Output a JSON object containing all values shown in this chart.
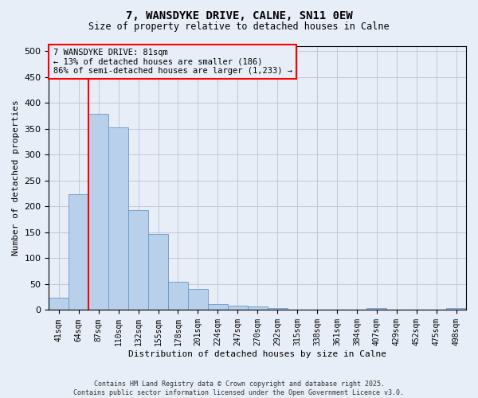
{
  "title_line1": "7, WANSDYKE DRIVE, CALNE, SN11 0EW",
  "title_line2": "Size of property relative to detached houses in Calne",
  "xlabel": "Distribution of detached houses by size in Calne",
  "ylabel": "Number of detached properties",
  "categories": [
    "41sqm",
    "64sqm",
    "87sqm",
    "110sqm",
    "132sqm",
    "155sqm",
    "178sqm",
    "201sqm",
    "224sqm",
    "247sqm",
    "270sqm",
    "292sqm",
    "315sqm",
    "338sqm",
    "361sqm",
    "384sqm",
    "407sqm",
    "429sqm",
    "452sqm",
    "475sqm",
    "498sqm"
  ],
  "values": [
    24,
    224,
    378,
    352,
    193,
    147,
    55,
    41,
    12,
    9,
    7,
    4,
    1,
    0,
    0,
    0,
    4,
    1,
    0,
    1,
    4
  ],
  "bar_color": "#b8d0ea",
  "bar_edge_color": "#6699cc",
  "highlight_line_color": "red",
  "ylim": [
    0,
    510
  ],
  "yticks": [
    0,
    50,
    100,
    150,
    200,
    250,
    300,
    350,
    400,
    450,
    500
  ],
  "annotation_text": "7 WANSDYKE DRIVE: 81sqm\n← 13% of detached houses are smaller (186)\n86% of semi-detached houses are larger (1,233) →",
  "annotation_box_color": "red",
  "footer_line1": "Contains HM Land Registry data © Crown copyright and database right 2025.",
  "footer_line2": "Contains public sector information licensed under the Open Government Licence v3.0.",
  "bg_color": "#e8eef8",
  "grid_color": "#c0c8d8"
}
